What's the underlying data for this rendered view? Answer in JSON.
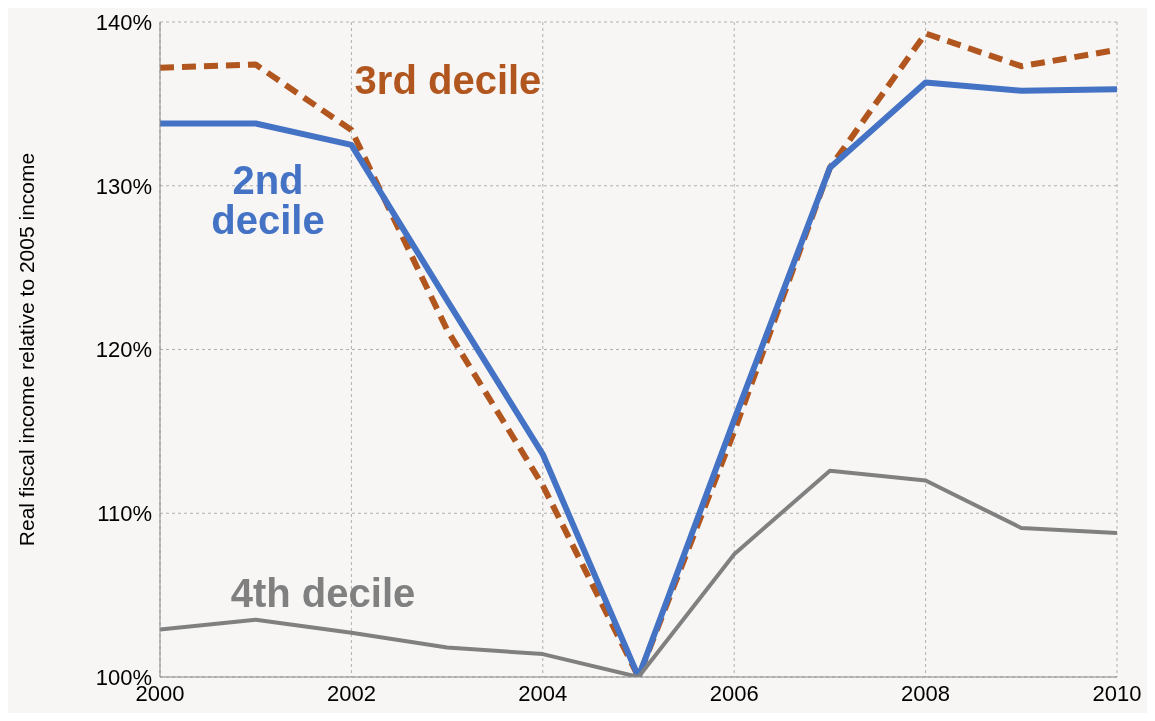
{
  "chart_data": {
    "type": "line",
    "ylabel": "Real  fiscal income relative to 2005 income",
    "x": [
      2000,
      2001,
      2002,
      2003,
      2004,
      2005,
      2006,
      2007,
      2008,
      2009,
      2010
    ],
    "xlim": [
      2000,
      2010
    ],
    "xticks": [
      2000,
      2002,
      2004,
      2006,
      2008,
      2010
    ],
    "ylim": [
      100,
      140
    ],
    "yticks": [
      {
        "value": 100,
        "label": "100%"
      },
      {
        "value": 110,
        "label": "110%"
      },
      {
        "value": 120,
        "label": "120%"
      },
      {
        "value": 130,
        "label": "130%"
      },
      {
        "value": 140,
        "label": "140%"
      }
    ],
    "grid": true,
    "marker": "none",
    "series": [
      {
        "name": "3rd decile",
        "color": "#b0561e",
        "line_style": "dashed",
        "values": [
          137.2,
          137.4,
          133.4,
          121.2,
          111.7,
          100,
          115.0,
          131.1,
          139.3,
          137.3,
          138.3
        ]
      },
      {
        "name": "2nd decile",
        "color": "#4472c4",
        "line_style": "solid",
        "values": [
          133.8,
          133.8,
          132.5,
          123.0,
          113.6,
          100,
          115.7,
          131.1,
          136.3,
          135.8,
          135.9
        ]
      },
      {
        "name": "4th decile",
        "color": "#808080",
        "line_style": "solid",
        "values": [
          102.9,
          103.5,
          102.7,
          101.8,
          101.4,
          100,
          107.5,
          112.6,
          112.0,
          109.1,
          108.8
        ]
      }
    ]
  }
}
